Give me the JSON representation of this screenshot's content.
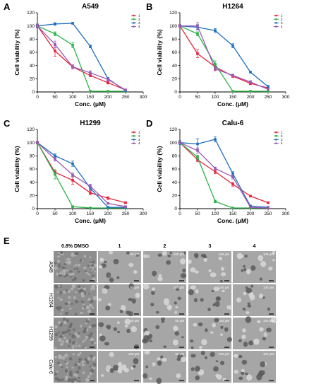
{
  "colors": {
    "series": [
      "#e8243c",
      "#2db34a",
      "#1f6fc0",
      "#9b59b6"
    ],
    "axis": "#000000",
    "micro_bg": "#9a9a9a"
  },
  "chart_data": [
    {
      "panel_letter": "A",
      "type": "line",
      "title": "A549",
      "xlabel": "Conc. (μM)",
      "ylabel": "Cell viability (%)",
      "xlim": [
        0,
        300
      ],
      "ylim": [
        0,
        120
      ],
      "xticks": [
        0,
        50,
        100,
        150,
        200,
        250,
        300
      ],
      "yticks": [
        0,
        20,
        40,
        60,
        80,
        100,
        120
      ],
      "legend_position": "top-right",
      "series": [
        {
          "name": "1",
          "x": [
            0,
            50,
            100,
            150,
            200,
            250
          ],
          "y": [
            100,
            62,
            38,
            25,
            14,
            3
          ],
          "err": [
            3,
            8,
            3,
            2,
            2,
            1
          ]
        },
        {
          "name": "2",
          "x": [
            0,
            50,
            100,
            150,
            200,
            250
          ],
          "y": [
            100,
            88,
            71,
            1,
            1,
            1
          ],
          "err": [
            2,
            3,
            4,
            1,
            1,
            1
          ]
        },
        {
          "name": "3",
          "x": [
            0,
            50,
            100,
            150,
            200,
            250
          ],
          "y": [
            100,
            103,
            104,
            69,
            20,
            2
          ],
          "err": [
            2,
            2,
            1,
            2,
            2,
            1
          ]
        },
        {
          "name": "4",
          "x": [
            0,
            50,
            100,
            150,
            200,
            250
          ],
          "y": [
            100,
            72,
            38,
            29,
            19,
            3
          ],
          "err": [
            3,
            5,
            3,
            3,
            2,
            1
          ]
        }
      ]
    },
    {
      "panel_letter": "B",
      "type": "line",
      "title": "H1264",
      "xlabel": "Conc. (μM)",
      "ylabel": "Cell viability (%)",
      "xlim": [
        0,
        300
      ],
      "ylim": [
        0,
        120
      ],
      "xticks": [
        0,
        50,
        100,
        150,
        200,
        250,
        300
      ],
      "yticks": [
        0,
        20,
        40,
        60,
        80,
        100,
        120
      ],
      "legend_position": "top-right",
      "series": [
        {
          "name": "1",
          "x": [
            0,
            50,
            100,
            150,
            200,
            250
          ],
          "y": [
            100,
            58,
            38,
            24,
            13,
            6
          ],
          "err": [
            2,
            6,
            5,
            2,
            2,
            1
          ]
        },
        {
          "name": "2",
          "x": [
            0,
            50,
            100,
            150,
            200,
            250
          ],
          "y": [
            100,
            88,
            42,
            1,
            1,
            1
          ],
          "err": [
            2,
            3,
            5,
            1,
            1,
            1
          ]
        },
        {
          "name": "3",
          "x": [
            0,
            50,
            100,
            150,
            200,
            250
          ],
          "y": [
            100,
            98,
            93,
            70,
            30,
            8
          ],
          "err": [
            2,
            4,
            3,
            3,
            1,
            2
          ]
        },
        {
          "name": "4",
          "x": [
            0,
            50,
            100,
            150,
            200,
            250
          ],
          "y": [
            100,
            100,
            35,
            25,
            15,
            4
          ],
          "err": [
            2,
            5,
            3,
            2,
            2,
            1
          ]
        }
      ]
    },
    {
      "panel_letter": "C",
      "type": "line",
      "title": "H1299",
      "xlabel": "Conc. (μM)",
      "ylabel": "Cell viability (%)",
      "xlim": [
        0,
        300
      ],
      "ylim": [
        0,
        120
      ],
      "xticks": [
        0,
        50,
        100,
        150,
        200,
        250,
        300
      ],
      "yticks": [
        0,
        20,
        40,
        60,
        80,
        100,
        120
      ],
      "legend_position": "top-right",
      "series": [
        {
          "name": "1",
          "x": [
            0,
            50,
            100,
            150,
            200,
            250
          ],
          "y": [
            100,
            55,
            43,
            24,
            16,
            9
          ],
          "err": [
            2,
            3,
            6,
            3,
            2,
            1
          ]
        },
        {
          "name": "2",
          "x": [
            0,
            50,
            100,
            150,
            200,
            250
          ],
          "y": [
            100,
            52,
            3,
            1,
            1,
            1
          ],
          "err": [
            2,
            7,
            1,
            1,
            1,
            1
          ]
        },
        {
          "name": "3",
          "x": [
            0,
            50,
            100,
            150,
            200,
            250
          ],
          "y": [
            100,
            80,
            68,
            31,
            2,
            2
          ],
          "err": [
            2,
            3,
            4,
            3,
            1,
            1
          ]
        },
        {
          "name": "4",
          "x": [
            0,
            50,
            100,
            150,
            200,
            250
          ],
          "y": [
            100,
            75,
            51,
            34,
            8,
            3
          ],
          "err": [
            2,
            3,
            3,
            3,
            1,
            1
          ]
        }
      ]
    },
    {
      "panel_letter": "D",
      "type": "line",
      "title": "Calu-6",
      "xlabel": "Conc. (μM)",
      "ylabel": "Cell viability (%)",
      "xlim": [
        0,
        300
      ],
      "ylim": [
        0,
        120
      ],
      "xticks": [
        0,
        50,
        100,
        150,
        200,
        250,
        300
      ],
      "yticks": [
        0,
        20,
        40,
        60,
        80,
        100,
        120
      ],
      "legend_position": "top-right",
      "series": [
        {
          "name": "1",
          "x": [
            0,
            50,
            100,
            150,
            200,
            250
          ],
          "y": [
            100,
            74,
            56,
            37,
            19,
            9
          ],
          "err": [
            2,
            3,
            3,
            3,
            1,
            1
          ]
        },
        {
          "name": "2",
          "x": [
            0,
            50,
            100,
            150,
            200,
            250
          ],
          "y": [
            100,
            78,
            11,
            1,
            1,
            1
          ],
          "err": [
            2,
            3,
            2,
            1,
            1,
            1
          ]
        },
        {
          "name": "3",
          "x": [
            0,
            50,
            100,
            150,
            200,
            250
          ],
          "y": [
            100,
            98,
            105,
            53,
            4,
            2
          ],
          "err": [
            3,
            8,
            4,
            3,
            1,
            1
          ]
        },
        {
          "name": "4",
          "x": [
            0,
            50,
            100,
            150,
            200,
            250
          ],
          "y": [
            100,
            88,
            61,
            48,
            2,
            1
          ],
          "err": [
            2,
            4,
            2,
            3,
            1,
            1
          ]
        }
      ]
    }
  ],
  "micrographs": {
    "panel_letter": "E",
    "columns": [
      "0.8% DMSO",
      "1",
      "2",
      "3",
      "4"
    ],
    "rows": [
      {
        "label": "A549",
        "conc": [
          "",
          "50 μM",
          "100 μM",
          "150 μM",
          "100 μM"
        ]
      },
      {
        "label": "H1264",
        "conc": [
          "",
          "50 μM",
          "100 μM",
          "150 μM",
          "100 μM"
        ]
      },
      {
        "label": "H1299",
        "conc": [
          "",
          "50 μM",
          "50 μM",
          "150 μM",
          "100 μM"
        ]
      },
      {
        "label": "Calu-6",
        "conc": [
          "",
          "100 μM",
          "50 μM",
          "150 μM",
          "150 μM"
        ]
      }
    ]
  }
}
